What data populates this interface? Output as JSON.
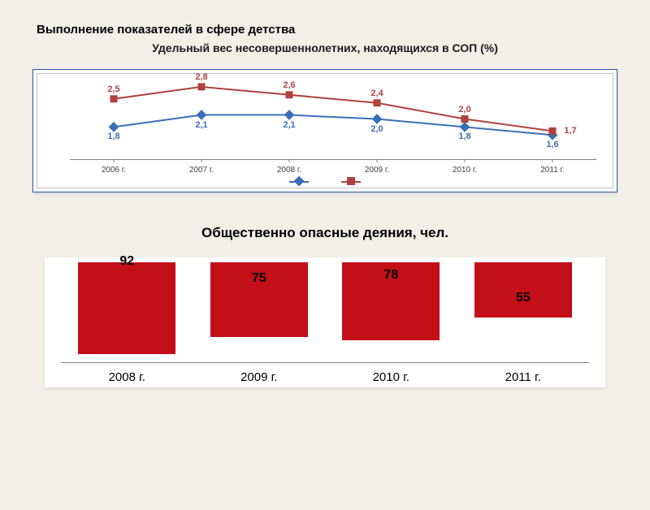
{
  "title": "Выполнение показателей в сфере детства",
  "subtitle": "Удельный вес несовершеннолетних, находящихся в СОП (%)",
  "chart1": {
    "type": "line",
    "categories": [
      "2006 г.",
      "2007 г.",
      "2008 г.",
      "2009 г.",
      "2010 г.",
      "2011 г."
    ],
    "ylim": [
      1.0,
      3.0
    ],
    "series": [
      {
        "name": "blue",
        "color": "#3a6fb7",
        "marker": "diamond",
        "values": [
          1.8,
          2.1,
          2.1,
          2.0,
          1.8,
          1.6
        ],
        "labels": [
          "1,8",
          "2,1",
          "2,1",
          "2,0",
          "1,8",
          "1,6"
        ],
        "label_position": "below"
      },
      {
        "name": "red",
        "color": "#b0413e",
        "marker": "square",
        "values": [
          2.5,
          2.8,
          2.6,
          2.4,
          2.0,
          1.7
        ],
        "labels": [
          "2,5",
          "2,8",
          "2,6",
          "2,4",
          "2,0",
          "1,7"
        ],
        "label_position": "above"
      }
    ],
    "background": "#ffffff",
    "border_color": "#2d5aa8",
    "axis_color": "#808080",
    "label_fontsize": 11,
    "tick_fontsize": 10
  },
  "chart2": {
    "type": "bar",
    "title": "Общественно опасные деяния, чел.",
    "categories": [
      "2008 г.",
      "2009 г.",
      "2010 г.",
      "2011 г."
    ],
    "values": [
      92,
      75,
      78,
      55
    ],
    "bar_color": "#c30f17",
    "ylim": [
      0,
      100
    ],
    "background": "#ffffff",
    "axis_color": "#808080",
    "value_fontsize": 16,
    "tick_fontsize": 15,
    "bar_width": 0.74
  },
  "page_background": "#f2efe8"
}
